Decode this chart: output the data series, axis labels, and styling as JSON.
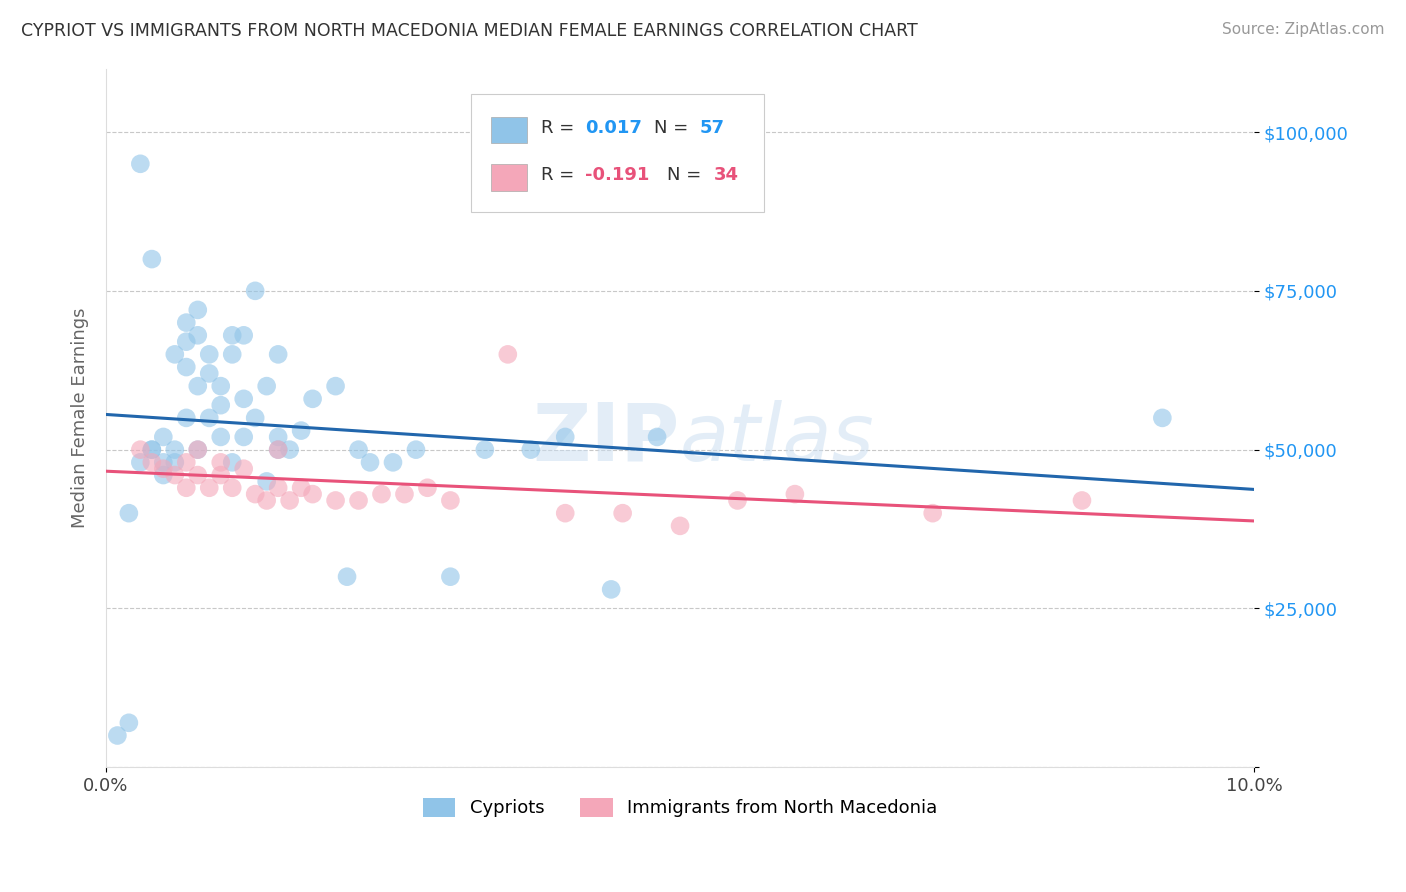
{
  "title": "CYPRIOT VS IMMIGRANTS FROM NORTH MACEDONIA MEDIAN FEMALE EARNINGS CORRELATION CHART",
  "source": "Source: ZipAtlas.com",
  "ylabel": "Median Female Earnings",
  "xlim": [
    0.0,
    0.1
  ],
  "ylim": [
    0,
    110000
  ],
  "yticks": [
    0,
    25000,
    50000,
    75000,
    100000
  ],
  "ytick_labels": [
    "",
    "$25,000",
    "$50,000",
    "$75,000",
    "$100,000"
  ],
  "xticks": [
    0.0,
    0.1
  ],
  "xtick_labels": [
    "0.0%",
    "10.0%"
  ],
  "legend1_label": "Cypriots",
  "legend2_label": "Immigrants from North Macedonia",
  "r1": 0.017,
  "n1": 57,
  "r2": -0.191,
  "n2": 34,
  "blue_color": "#90c4e8",
  "pink_color": "#f4a7b9",
  "blue_line_color": "#2166ac",
  "pink_line_color": "#e8527a",
  "watermark_text": "ZIPatlas",
  "background_color": "#ffffff",
  "grid_color": "#c8c8c8",
  "blue_scatter_x": [
    0.001,
    0.002,
    0.003,
    0.003,
    0.004,
    0.004,
    0.005,
    0.005,
    0.005,
    0.006,
    0.006,
    0.006,
    0.007,
    0.007,
    0.007,
    0.007,
    0.008,
    0.008,
    0.008,
    0.008,
    0.009,
    0.009,
    0.009,
    0.01,
    0.01,
    0.01,
    0.011,
    0.011,
    0.011,
    0.012,
    0.012,
    0.012,
    0.013,
    0.013,
    0.014,
    0.014,
    0.015,
    0.015,
    0.015,
    0.016,
    0.017,
    0.018,
    0.02,
    0.021,
    0.022,
    0.023,
    0.025,
    0.027,
    0.03,
    0.033,
    0.037,
    0.04,
    0.044,
    0.048,
    0.002,
    0.004,
    0.092
  ],
  "blue_scatter_y": [
    5000,
    7000,
    95000,
    48000,
    80000,
    50000,
    48000,
    52000,
    46000,
    50000,
    65000,
    48000,
    70000,
    67000,
    63000,
    55000,
    72000,
    68000,
    60000,
    50000,
    65000,
    62000,
    55000,
    60000,
    57000,
    52000,
    68000,
    65000,
    48000,
    68000,
    58000,
    52000,
    75000,
    55000,
    60000,
    45000,
    65000,
    52000,
    50000,
    50000,
    53000,
    58000,
    60000,
    30000,
    50000,
    48000,
    48000,
    50000,
    30000,
    50000,
    50000,
    52000,
    28000,
    52000,
    40000,
    50000,
    55000
  ],
  "pink_scatter_x": [
    0.003,
    0.004,
    0.005,
    0.006,
    0.007,
    0.007,
    0.008,
    0.008,
    0.009,
    0.01,
    0.01,
    0.011,
    0.012,
    0.013,
    0.014,
    0.015,
    0.015,
    0.016,
    0.017,
    0.018,
    0.02,
    0.022,
    0.024,
    0.026,
    0.028,
    0.03,
    0.035,
    0.04,
    0.045,
    0.05,
    0.055,
    0.06,
    0.072,
    0.085
  ],
  "pink_scatter_y": [
    50000,
    48000,
    47000,
    46000,
    44000,
    48000,
    50000,
    46000,
    44000,
    46000,
    48000,
    44000,
    47000,
    43000,
    42000,
    44000,
    50000,
    42000,
    44000,
    43000,
    42000,
    42000,
    43000,
    43000,
    44000,
    42000,
    65000,
    40000,
    40000,
    38000,
    42000,
    43000,
    40000,
    42000
  ]
}
